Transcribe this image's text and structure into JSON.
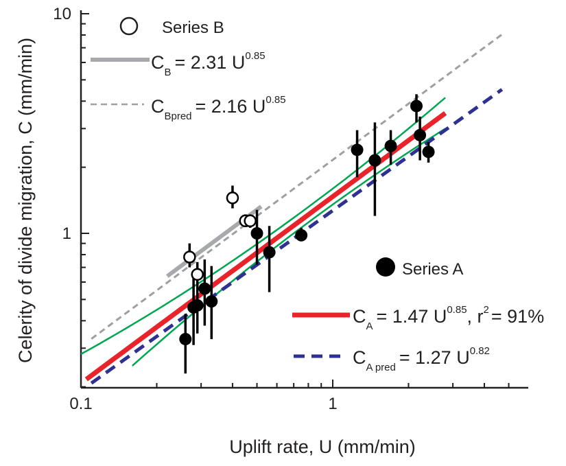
{
  "chart_data": {
    "type": "scatter",
    "xlabel": "Uplift rate, U (mm/min)",
    "ylabel": "Celerity of divide migration, C (mm/min)",
    "xscale": "log",
    "yscale": "log",
    "xlim": [
      0.1,
      5
    ],
    "ylim": [
      0.2,
      10
    ],
    "xticks": [
      {
        "value": 0.1,
        "label": "0.1"
      },
      {
        "value": 1,
        "label": "1"
      }
    ],
    "yticks": [
      {
        "value": 1,
        "label": "1"
      },
      {
        "value": 10,
        "label": "10"
      }
    ],
    "legend_placement": "in-plot",
    "series": [
      {
        "name": "Series A",
        "kind": "points",
        "marker": "filled-circle",
        "color": "#000000",
        "x": [
          0.26,
          0.28,
          0.29,
          0.31,
          0.33,
          0.5,
          0.56,
          0.75,
          1.25,
          1.47,
          1.7,
          2.15,
          2.22,
          2.4
        ],
        "y": [
          0.33,
          0.46,
          0.47,
          0.56,
          0.49,
          1.0,
          0.82,
          0.98,
          2.4,
          2.15,
          2.5,
          3.8,
          2.8,
          2.35
        ],
        "y_err_low": [
          0.23,
          0.31,
          0.35,
          0.38,
          0.33,
          0.72,
          0.54,
          0.92,
          1.8,
          1.2,
          2.05,
          3.2,
          2.15,
          2.1
        ],
        "y_err_high": [
          0.43,
          0.64,
          0.6,
          0.76,
          0.71,
          1.28,
          1.08,
          1.06,
          2.95,
          3.2,
          2.95,
          4.3,
          3.4,
          2.6
        ]
      },
      {
        "name": "Series B",
        "kind": "points",
        "marker": "open-circle",
        "color": "#000000",
        "x": [
          0.27,
          0.29,
          0.4,
          0.45,
          0.47
        ],
        "y": [
          0.78,
          0.65,
          1.45,
          1.14,
          1.14
        ],
        "y_err_low": [
          0.7,
          0.58,
          1.3,
          1.08,
          1.06
        ],
        "y_err_high": [
          0.9,
          0.74,
          1.65,
          1.22,
          1.22
        ]
      }
    ],
    "fits": [
      {
        "name": "C_B fit",
        "formula": {
          "C": "C",
          "sub": "B",
          "eq": "= 2.31 U",
          "exp": "0.85"
        },
        "coef": 2.31,
        "exp": 0.85,
        "x_range": [
          0.22,
          0.52
        ],
        "color": "#a7a9ac",
        "style": "solid-thick"
      },
      {
        "name": "C_Bpred",
        "formula": {
          "C": "C",
          "sub": "Bpred",
          "eq": "= 2.16 U",
          "exp": "0.85"
        },
        "coef": 2.16,
        "exp": 0.85,
        "x_range": [
          0.11,
          4.7
        ],
        "color": "#9d9fa2",
        "style": "dashed"
      },
      {
        "name": "C_A fit",
        "formula": {
          "C": "C",
          "sub": "A",
          "eq": "= 1.47 U",
          "exp": "0.85",
          "r2_prefix": ", r",
          "r2_exp": "2",
          "r2_eq": "= 91%"
        },
        "coef": 1.47,
        "exp": 0.85,
        "x_range": [
          0.105,
          2.8
        ],
        "color": "#e8242a",
        "style": "solid-thick"
      },
      {
        "name": "C_Apred",
        "formula": {
          "C": "C",
          "sub": "A pred",
          "eq": "= 1.27 U",
          "exp": "0.82"
        },
        "coef": 1.27,
        "exp": 0.82,
        "x_range": [
          0.11,
          4.7
        ],
        "color": "#2e3192",
        "style": "dashed"
      },
      {
        "name": "C_A upper confidence",
        "coef": 1.62,
        "exp": 0.85,
        "x_range": [
          0.1,
          2.8
        ],
        "color": "#00a651",
        "style": "solid-thin",
        "curve": "upper"
      },
      {
        "name": "C_A lower confidence",
        "coef": 1.33,
        "exp": 0.85,
        "x_range": [
          0.16,
          2.8
        ],
        "color": "#00a651",
        "style": "solid-thin",
        "curve": "lower"
      }
    ],
    "legend": {
      "series_b": "Series B",
      "series_a": "Series A"
    }
  }
}
